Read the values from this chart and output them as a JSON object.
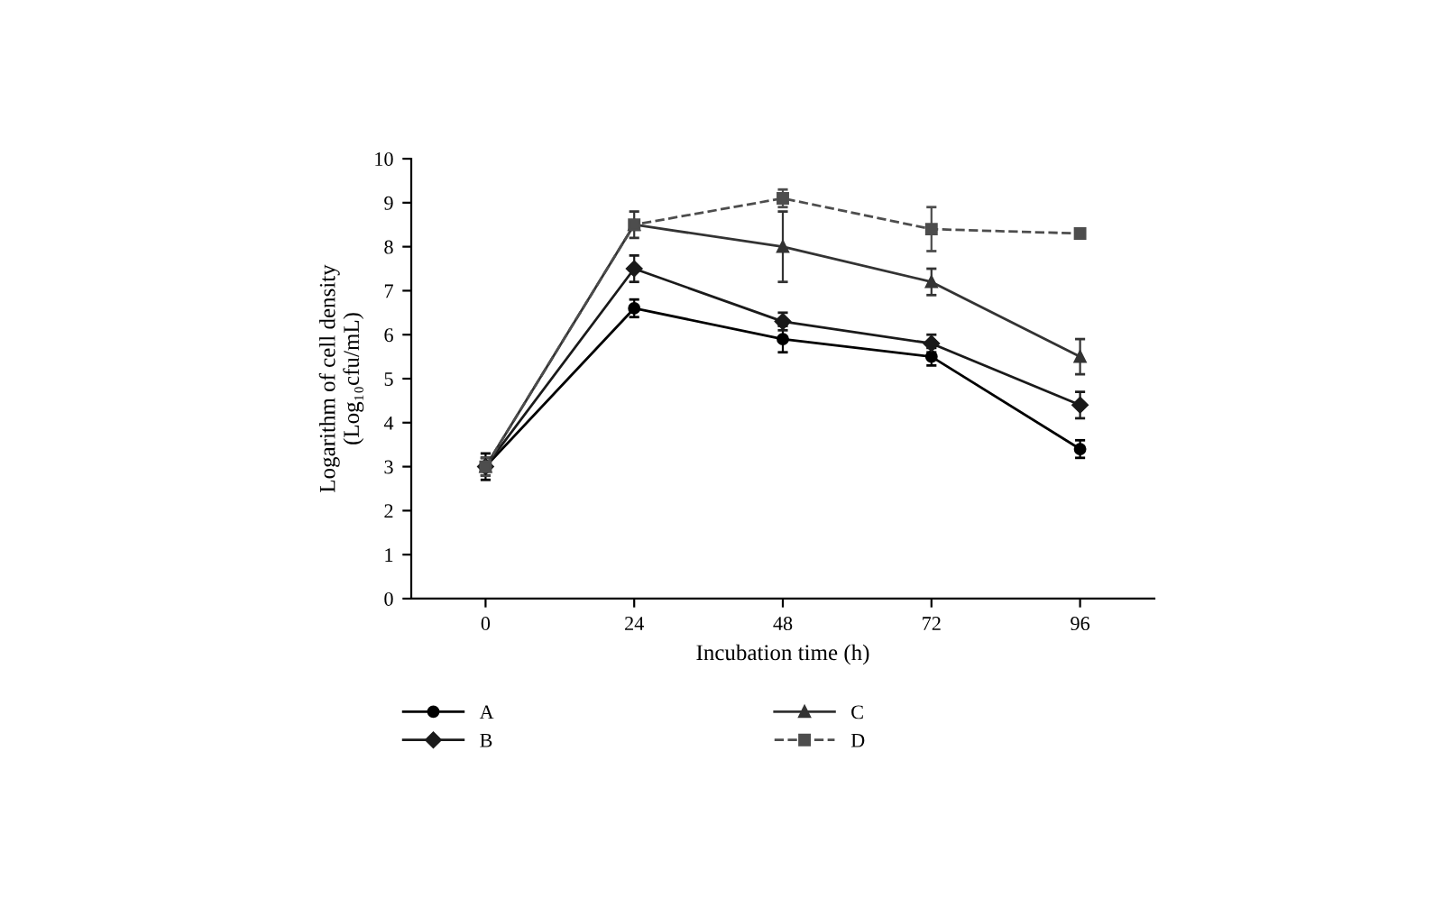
{
  "chart_data": {
    "type": "line",
    "xlabel": "Incubation time (h)",
    "ylabel": "Logarithm of cell density\n(Log₁₀cfu/mL)",
    "categories": [
      "0",
      "24",
      "48",
      "72",
      "96"
    ],
    "ylim": [
      0,
      10
    ],
    "yticks": [
      0,
      1,
      2,
      3,
      4,
      5,
      6,
      7,
      8,
      9,
      10
    ],
    "grid": false,
    "legend": "bottom",
    "series": [
      {
        "name": "A",
        "color": "#000000",
        "marker": "circle",
        "line_style": "solid",
        "values": [
          3.0,
          6.6,
          5.9,
          5.5,
          3.4
        ],
        "errors": [
          0.3,
          0.2,
          0.3,
          0.2,
          0.2
        ]
      },
      {
        "name": "B",
        "color": "#1a1a1a",
        "marker": "diamond",
        "line_style": "solid",
        "values": [
          3.0,
          7.5,
          6.3,
          5.8,
          4.4
        ],
        "errors": [
          0.2,
          0.3,
          0.2,
          0.2,
          0.3
        ]
      },
      {
        "name": "C",
        "color": "#333333",
        "marker": "triangle",
        "line_style": "solid",
        "values": [
          3.0,
          8.5,
          8.0,
          7.2,
          5.5
        ],
        "errors": [
          0.2,
          0.3,
          0.8,
          0.3,
          0.4
        ]
      },
      {
        "name": "D",
        "color": "#4d4d4d",
        "marker": "square",
        "line_style": "dashed",
        "values": [
          3.0,
          8.5,
          9.1,
          8.4,
          8.3
        ],
        "errors": [
          0.2,
          null,
          0.2,
          0.5,
          0.1
        ]
      }
    ]
  }
}
